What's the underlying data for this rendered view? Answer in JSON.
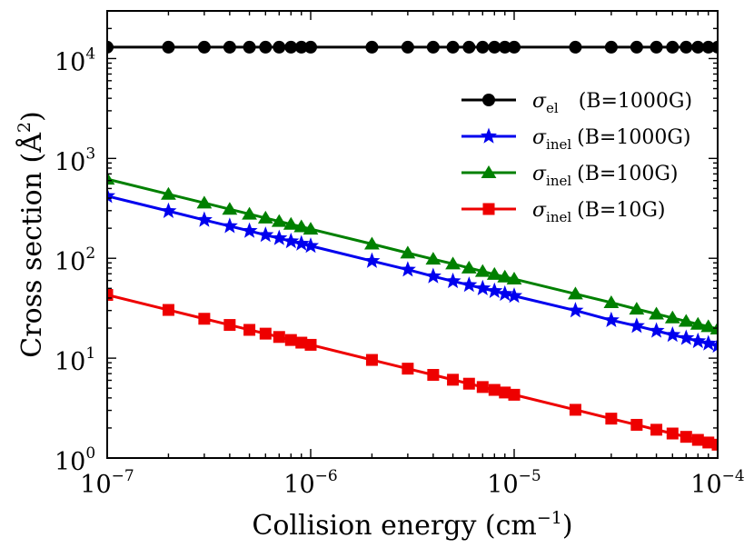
{
  "chart_data": {
    "type": "line",
    "scale": {
      "x": "log",
      "y": "log"
    },
    "xlim": [
      1e-07,
      0.0001
    ],
    "ylim": [
      1,
      30000
    ],
    "xlabel": {
      "main": "Collision energy (cm",
      "sup": "−1",
      "end": ")"
    },
    "ylabel": {
      "main": "Cross section (",
      "base": "Å",
      "sup": "2",
      "end": ")"
    },
    "x_ticks": [
      {
        "value": 1e-07,
        "base": "10",
        "exp": "−7"
      },
      {
        "value": 1e-06,
        "base": "10",
        "exp": "−6"
      },
      {
        "value": 1e-05,
        "base": "10",
        "exp": "−5"
      },
      {
        "value": 0.0001,
        "base": "10",
        "exp": "−4"
      }
    ],
    "y_ticks": [
      {
        "value": 1,
        "base": "10",
        "exp": "0"
      },
      {
        "value": 10,
        "base": "10",
        "exp": "1"
      },
      {
        "value": 100,
        "base": "10",
        "exp": "2"
      },
      {
        "value": 1000,
        "base": "10",
        "exp": "3"
      },
      {
        "value": 10000,
        "base": "10",
        "exp": "4"
      }
    ],
    "x": [
      1e-07,
      2e-07,
      3e-07,
      4e-07,
      5e-07,
      6e-07,
      7e-07,
      8e-07,
      9e-07,
      1e-06,
      2e-06,
      3e-06,
      4e-06,
      5e-06,
      6e-06,
      7e-06,
      8e-06,
      9e-06,
      1e-05,
      2e-05,
      3e-05,
      4e-05,
      5e-05,
      6e-05,
      7e-05,
      8e-05,
      9e-05,
      0.0001
    ],
    "series": [
      {
        "id": "el1000",
        "symbol": "σ",
        "sub": "el",
        "label": "(B=1000G)",
        "color": "#000000",
        "marker": "circle",
        "values": [
          13000,
          13000,
          13000,
          13000,
          13000,
          13000,
          13000,
          13000,
          13000,
          13000,
          13000,
          13000,
          13000,
          13000,
          13000,
          13000,
          13000,
          13000,
          13000,
          13000,
          13000,
          13000,
          13000,
          13000,
          13000,
          13000,
          13000,
          13000
        ]
      },
      {
        "id": "inel1000",
        "symbol": "σ",
        "sub": "inel",
        "label": "(B=1000G)",
        "color": "#0000ee",
        "marker": "star",
        "values": [
          420,
          297,
          242,
          210,
          188,
          171,
          159,
          148,
          140,
          133,
          94,
          77,
          66,
          59,
          54,
          50,
          47,
          44,
          42,
          30,
          24,
          21,
          18.8,
          17.1,
          15.9,
          14.8,
          14,
          13.3
        ]
      },
      {
        "id": "inel100",
        "symbol": "σ",
        "sub": "inel",
        "label": "(B=100G)",
        "color": "#008000",
        "marker": "triangle",
        "values": [
          620,
          438,
          358,
          310,
          277,
          253,
          234,
          219,
          207,
          196,
          139,
          113,
          98,
          88,
          80,
          74,
          69,
          65,
          62,
          44,
          36,
          31,
          27.7,
          25.3,
          23.4,
          21.9,
          20.7,
          19.6
        ]
      },
      {
        "id": "inel10",
        "symbol": "σ",
        "sub": "inel",
        "label": "(B=10G)",
        "color": "#ee0000",
        "marker": "square",
        "values": [
          43,
          30.4,
          24.8,
          21.5,
          19.2,
          17.6,
          16.3,
          15.2,
          14.3,
          13.6,
          9.6,
          7.85,
          6.8,
          6.08,
          5.55,
          5.14,
          4.81,
          4.53,
          4.3,
          3.04,
          2.48,
          2.15,
          1.92,
          1.76,
          1.63,
          1.52,
          1.43,
          1.36
        ]
      }
    ],
    "legend_position": "upper-right",
    "grid": false
  }
}
